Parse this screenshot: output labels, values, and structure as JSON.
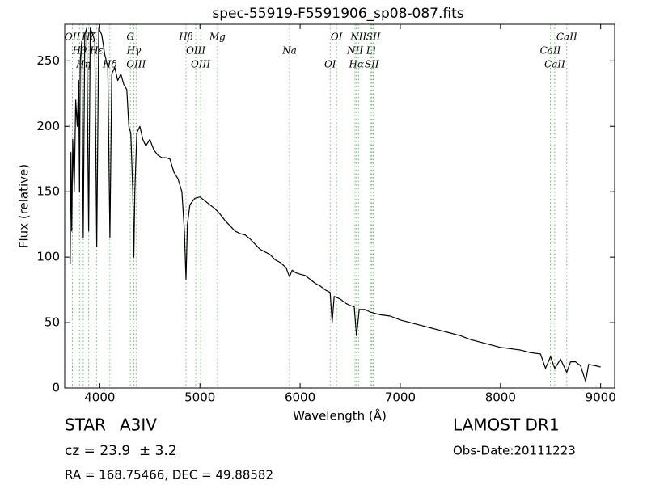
{
  "chart_data": {
    "type": "line",
    "title": "spec-55919-F5591906_sp08-087.fits",
    "x_label": "Wavelength (Å)",
    "y_label": "Flux (relative)",
    "xlim": [
      3650,
      9140
    ],
    "ylim": [
      0,
      278
    ],
    "xticks": [
      4000,
      5000,
      6000,
      7000,
      8000,
      9000
    ],
    "yticks": [
      0,
      50,
      100,
      150,
      200,
      250
    ],
    "spectral_line_color": "#66bb66",
    "spectral_lines": [
      {
        "name": "OII",
        "wavelength": 3727
      },
      {
        "name": "Hθ",
        "wavelength": 3798
      },
      {
        "name": "Hη",
        "wavelength": 3835
      },
      {
        "name": "Hζ",
        "wavelength": 3889
      },
      {
        "name": "Hε",
        "wavelength": 3970
      },
      {
        "name": "Hδ",
        "wavelength": 4101
      },
      {
        "name": "G",
        "wavelength": 4305
      },
      {
        "name": "Hγ",
        "wavelength": 4340
      },
      {
        "name": "OIII",
        "wavelength": 4363
      },
      {
        "name": "Hβ",
        "wavelength": 4861
      },
      {
        "name": "OIII",
        "wavelength": 4959
      },
      {
        "name": "OIII",
        "wavelength": 5007
      },
      {
        "name": "Mg",
        "wavelength": 5175
      },
      {
        "name": "Na",
        "wavelength": 5894
      },
      {
        "name": "OI",
        "wavelength": 6300
      },
      {
        "name": "OI",
        "wavelength": 6364
      },
      {
        "name": "NII",
        "wavelength": 6548
      },
      {
        "name": "Hα",
        "wavelength": 6563
      },
      {
        "name": "NII",
        "wavelength": 6583
      },
      {
        "name": "Li",
        "wavelength": 6708
      },
      {
        "name": "SII",
        "wavelength": 6716
      },
      {
        "name": "SII",
        "wavelength": 6731
      },
      {
        "name": "CaII",
        "wavelength": 8498
      },
      {
        "name": "CaII",
        "wavelength": 8542
      },
      {
        "name": "CaII",
        "wavelength": 8662
      }
    ],
    "series": [
      {
        "color": "#000000",
        "x": [
          3705,
          3712,
          3720,
          3730,
          3745,
          3760,
          3775,
          3790,
          3798,
          3805,
          3820,
          3835,
          3850,
          3870,
          3889,
          3905,
          3930,
          3950,
          3970,
          3990,
          4020,
          4050,
          4080,
          4101,
          4120,
          4150,
          4180,
          4210,
          4240,
          4270,
          4290,
          4310,
          4330,
          4340,
          4350,
          4370,
          4400,
          4430,
          4460,
          4500,
          4540,
          4580,
          4620,
          4660,
          4700,
          4740,
          4780,
          4820,
          4845,
          4861,
          4875,
          4900,
          4950,
          5000,
          5050,
          5100,
          5150,
          5200,
          5250,
          5300,
          5350,
          5400,
          5450,
          5500,
          5550,
          5600,
          5650,
          5700,
          5750,
          5800,
          5860,
          5894,
          5920,
          5960,
          6000,
          6050,
          6100,
          6150,
          6200,
          6250,
          6300,
          6320,
          6340,
          6400,
          6450,
          6500,
          6540,
          6563,
          6590,
          6650,
          6700,
          6800,
          6900,
          7000,
          7100,
          7200,
          7300,
          7400,
          7500,
          7600,
          7700,
          7800,
          7900,
          8000,
          8100,
          8200,
          8300,
          8400,
          8450,
          8500,
          8542,
          8600,
          8662,
          8700,
          8750,
          8800,
          8850,
          8880,
          8950,
          9000
        ],
        "values": [
          95,
          180,
          120,
          190,
          150,
          220,
          200,
          235,
          150,
          250,
          265,
          115,
          270,
          275,
          120,
          275,
          270,
          265,
          108,
          275,
          270,
          255,
          245,
          115,
          240,
          245,
          235,
          240,
          232,
          228,
          200,
          195,
          150,
          100,
          150,
          195,
          200,
          190,
          185,
          190,
          182,
          178,
          176,
          176,
          175,
          165,
          160,
          150,
          120,
          83,
          125,
          140,
          145,
          146,
          143,
          140,
          137,
          133,
          128,
          124,
          120,
          118,
          117,
          114,
          110,
          106,
          104,
          102,
          98,
          96,
          92,
          85,
          90,
          88,
          87,
          86,
          83,
          80,
          78,
          75,
          73,
          50,
          70,
          68,
          65,
          63,
          62,
          40,
          60,
          60,
          58,
          56,
          55,
          52,
          50,
          48,
          46,
          44,
          42,
          40,
          37,
          35,
          33,
          31,
          30,
          29,
          27,
          26,
          15,
          24,
          15,
          22,
          12,
          20,
          20,
          17,
          5,
          18,
          17,
          16
        ]
      }
    ]
  },
  "footer": {
    "object_type": "STAR",
    "subclass": "A3IV",
    "redshift": "cz = 23.9  ± 3.2",
    "coordinates": "RA = 168.75466, DEC = 49.88582",
    "survey": "LAMOST DR1",
    "obs_date": "Obs-Date:20111223"
  }
}
